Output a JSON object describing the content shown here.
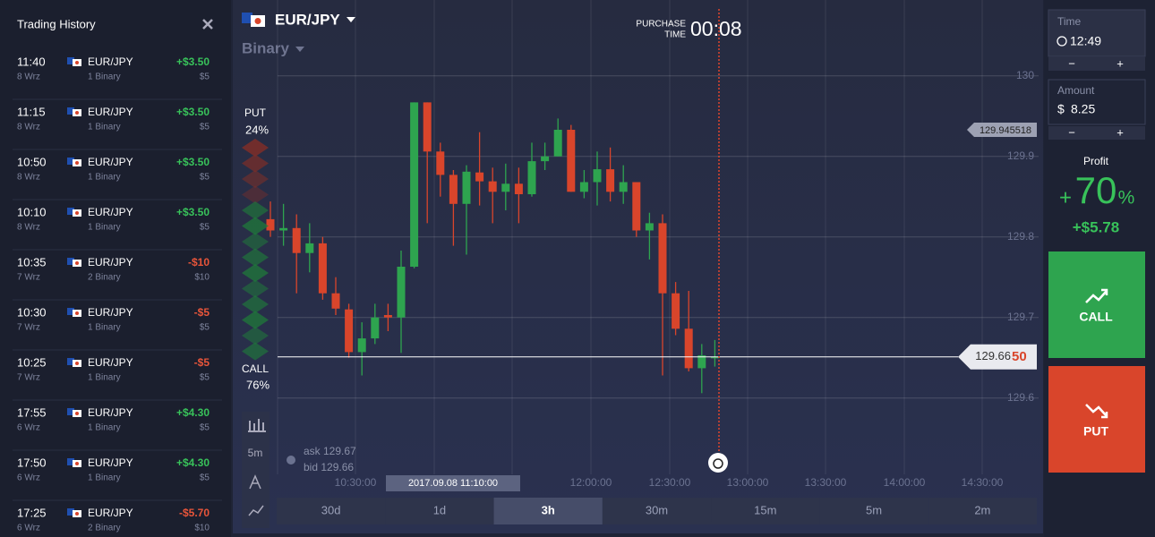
{
  "sidebar": {
    "title": "Trading History",
    "trades": [
      {
        "time": "11:40",
        "date": "8 Wrz",
        "asset": "EUR/JPY",
        "option": "1 Binary",
        "result": "+$3.50",
        "amount": "$5"
      },
      {
        "time": "11:15",
        "date": "8 Wrz",
        "asset": "EUR/JPY",
        "option": "1 Binary",
        "result": "+$3.50",
        "amount": "$5"
      },
      {
        "time": "10:50",
        "date": "8 Wrz",
        "asset": "EUR/JPY",
        "option": "1 Binary",
        "result": "+$3.50",
        "amount": "$5"
      },
      {
        "time": "10:10",
        "date": "8 Wrz",
        "asset": "EUR/JPY",
        "option": "1 Binary",
        "result": "+$3.50",
        "amount": "$5"
      },
      {
        "time": "10:35",
        "date": "7 Wrz",
        "asset": "EUR/JPY",
        "option": "2 Binary",
        "result": "-$10",
        "amount": "$10"
      },
      {
        "time": "10:30",
        "date": "7 Wrz",
        "asset": "EUR/JPY",
        "option": "1 Binary",
        "result": "-$5",
        "amount": "$5"
      },
      {
        "time": "10:25",
        "date": "7 Wrz",
        "asset": "EUR/JPY",
        "option": "1 Binary",
        "result": "-$5",
        "amount": "$5"
      },
      {
        "time": "17:55",
        "date": "6 Wrz",
        "asset": "EUR/JPY",
        "option": "1 Binary",
        "result": "+$4.30",
        "amount": "$5"
      },
      {
        "time": "17:50",
        "date": "6 Wrz",
        "asset": "EUR/JPY",
        "option": "1 Binary",
        "result": "+$4.30",
        "amount": "$5"
      },
      {
        "time": "17:25",
        "date": "6 Wrz",
        "asset": "EUR/JPY",
        "option": "2 Binary",
        "result": "-$5.70",
        "amount": "$10"
      }
    ]
  },
  "header": {
    "asset": "EUR/JPY",
    "mode": "Binary",
    "purchase_label_1": "PURCHASE",
    "purchase_label_2": "TIME",
    "countdown": "00:08"
  },
  "chart": {
    "type": "candlestick",
    "open": [
      129.822,
      129.808,
      129.811,
      129.78,
      129.792,
      129.73,
      129.71,
      129.657,
      129.674,
      129.703,
      129.7,
      129.763,
      129.967,
      129.906,
      129.877,
      129.841,
      129.88,
      129.869,
      129.856,
      129.866,
      129.853,
      129.894,
      129.9,
      129.933,
      129.856,
      129.868,
      129.884,
      129.856,
      129.868,
      129.808,
      129.817,
      129.73,
      129.686,
      129.637,
      129.65
    ],
    "high": [
      129.844,
      129.841,
      129.828,
      129.817,
      129.8,
      129.75,
      129.717,
      129.694,
      129.717,
      129.717,
      129.783,
      129.967,
      129.967,
      129.917,
      129.883,
      129.889,
      129.93,
      129.886,
      129.891,
      129.886,
      129.917,
      129.917,
      129.947,
      129.939,
      129.883,
      129.906,
      129.911,
      129.889,
      129.868,
      129.83,
      129.828,
      129.744,
      129.733,
      129.667,
      129.672
    ],
    "low": [
      129.8,
      129.789,
      129.73,
      129.756,
      129.722,
      129.703,
      129.65,
      129.628,
      129.667,
      129.683,
      129.656,
      129.761,
      129.817,
      129.85,
      129.789,
      129.778,
      129.839,
      129.817,
      129.833,
      129.817,
      129.85,
      129.883,
      129.9,
      129.856,
      129.848,
      129.839,
      129.844,
      129.841,
      129.8,
      129.772,
      129.628,
      129.678,
      129.633,
      129.606,
      129.639
    ],
    "close": [
      129.808,
      129.811,
      129.78,
      129.792,
      129.73,
      129.711,
      129.657,
      129.674,
      129.7,
      129.7,
      129.763,
      129.967,
      129.906,
      129.877,
      129.841,
      129.881,
      129.869,
      129.856,
      129.866,
      129.853,
      129.894,
      129.9,
      129.933,
      129.856,
      129.868,
      129.884,
      129.856,
      129.868,
      129.808,
      129.817,
      129.73,
      129.686,
      129.637,
      129.653,
      129.651
    ],
    "colors": {
      "up": "#2ea44f",
      "down": "#d9452b"
    },
    "ylim": [
      129.483,
      130.083
    ],
    "yticks": [
      130,
      129.9,
      129.8,
      129.7,
      129.6
    ],
    "xtick_labels": [
      "10:30:00",
      "12:00:00",
      "12:30:00",
      "13:00:00",
      "13:30:00",
      "14:00:00",
      "14:30:00"
    ],
    "cursor_time": "2017.09.08 11:10:00",
    "price_tag": "129.945518",
    "current_price": "129.66",
    "current_pip": "50",
    "ask": "ask 129.67",
    "bid": "bid 129.66",
    "put_label": "PUT",
    "put_share": "24%",
    "call_label": "CALL",
    "call_share": "76%"
  },
  "toolbar": {
    "interval": "5m"
  },
  "periods": {
    "options": [
      "30d",
      "1d",
      "3h",
      "30m",
      "15m",
      "5m",
      "2m"
    ],
    "active": 2
  },
  "trade_panel": {
    "time_label": "Time",
    "time_value": "12:49",
    "minus": "−",
    "plus": "+",
    "amount_label": "Amount",
    "currency": "$",
    "amount_value": "8.25",
    "profit_label": "Profit",
    "profit_sign": "+",
    "profit_value": "70",
    "profit_unit": "%",
    "profit_amount": "+$5.78",
    "call": "CALL",
    "put": "PUT"
  }
}
